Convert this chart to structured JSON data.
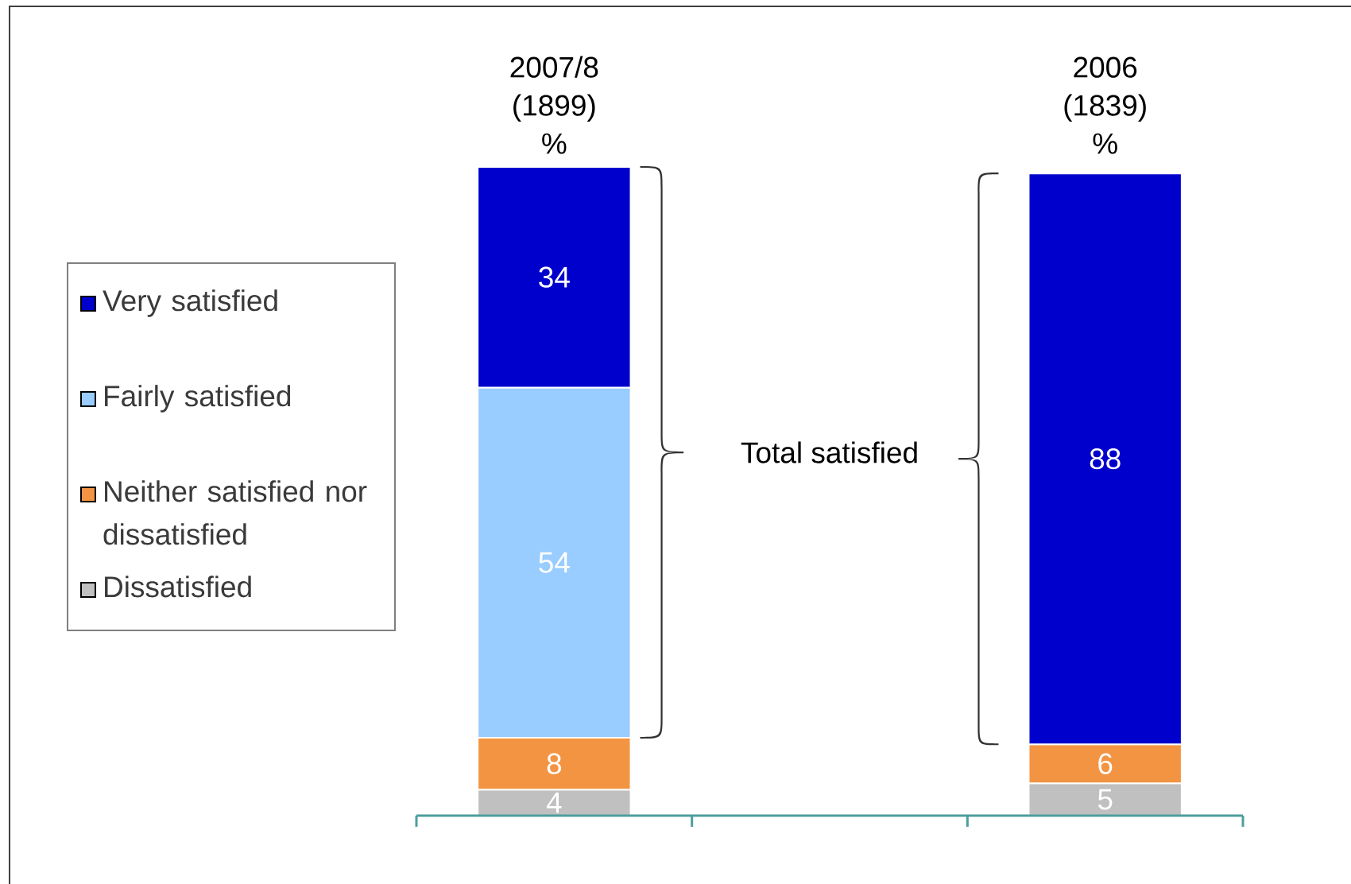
{
  "chart_data": {
    "type": "bar",
    "stacked": true,
    "categories": [
      "2007/8 (1899) %",
      null,
      "2006 (1839) %"
    ],
    "series": [
      {
        "name": "Dissatisfied",
        "color": "#c0c0c0",
        "values": [
          4,
          null,
          5
        ]
      },
      {
        "name": "Neither satisfied nor dissatisfied",
        "color": "#f39443",
        "values": [
          8,
          null,
          6
        ]
      },
      {
        "name": "Fairly satisfied",
        "color": "#99ccff",
        "values": [
          54,
          null,
          null
        ]
      },
      {
        "name": "Very satisfied",
        "color": "#0000cc",
        "values": [
          34,
          null,
          88
        ]
      }
    ],
    "data_labels": true,
    "legend": "left",
    "annotations": [
      "Total satisfied"
    ]
  }
}
